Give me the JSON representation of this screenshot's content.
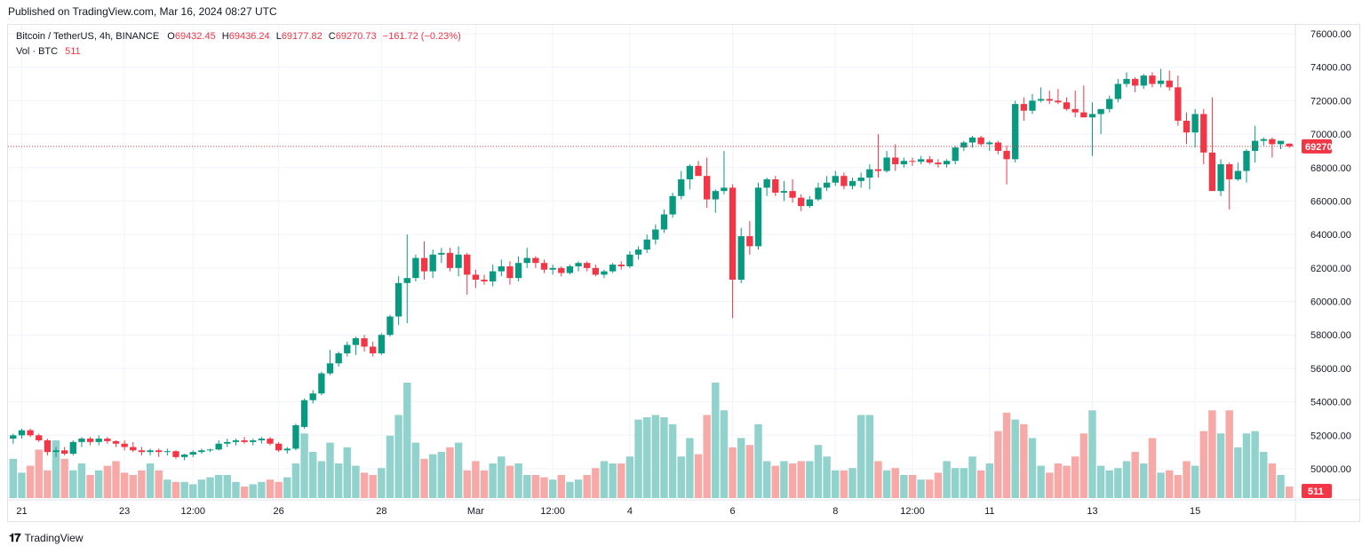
{
  "header": {
    "published": "Published on TradingView.com, Mar 16, 2024 08:27 UTC"
  },
  "legend": {
    "symbol": "Bitcoin / TetherUS, 4h, BINANCE",
    "o_label": "O",
    "o": "69432.45",
    "h_label": "H",
    "h": "69436.24",
    "l_label": "L",
    "l": "69177.82",
    "c_label": "C",
    "c": "69270.73",
    "change": "−161.72 (−0.23%)",
    "vol_label": "Vol · BTC",
    "vol": "511"
  },
  "footer": {
    "brand": "TradingView"
  },
  "colors": {
    "up": "#089981",
    "down": "#f23645",
    "vol_up": "#92d2cc",
    "vol_down": "#f7a9a7",
    "grid": "#f0f3fa"
  },
  "chart_data": {
    "type": "candlestick",
    "interval": "4h",
    "ylim": [
      48000,
      76000
    ],
    "y_ticks": [
      "76000.00",
      "74000.00",
      "72000.00",
      "70000.00",
      "68000.00",
      "66000.00",
      "64000.00",
      "62000.00",
      "60000.00",
      "58000.00",
      "56000.00",
      "54000.00",
      "52000.00",
      "50000.00"
    ],
    "x_ticks": [
      {
        "label": "21",
        "bar": 1
      },
      {
        "label": "23",
        "bar": 13
      },
      {
        "label": "12:00",
        "bar": 21
      },
      {
        "label": "26",
        "bar": 31
      },
      {
        "label": "28",
        "bar": 43
      },
      {
        "label": "Mar",
        "bar": 54
      },
      {
        "label": "12:00",
        "bar": 63
      },
      {
        "label": "4",
        "bar": 72
      },
      {
        "label": "6",
        "bar": 84
      },
      {
        "label": "8",
        "bar": 96
      },
      {
        "label": "12:00",
        "bar": 105
      },
      {
        "label": "11",
        "bar": 114
      },
      {
        "label": "13",
        "bar": 126
      },
      {
        "label": "15",
        "bar": 138
      }
    ],
    "last_price": "69270.73",
    "last_volume": "511",
    "ohlc": [
      [
        51800,
        52100,
        51500,
        52000
      ],
      [
        52000,
        52400,
        51800,
        52300
      ],
      [
        52300,
        52400,
        51900,
        52000
      ],
      [
        52000,
        52100,
        51600,
        51700
      ],
      [
        51700,
        51800,
        50800,
        51000
      ],
      [
        51000,
        51300,
        50700,
        51100
      ],
      [
        51100,
        51300,
        50800,
        50900
      ],
      [
        50900,
        51700,
        50800,
        51600
      ],
      [
        51600,
        51900,
        51300,
        51800
      ],
      [
        51800,
        51900,
        51400,
        51600
      ],
      [
        51600,
        52000,
        51400,
        51800
      ],
      [
        51800,
        51900,
        51500,
        51650
      ],
      [
        51650,
        51700,
        51300,
        51500
      ],
      [
        51500,
        51700,
        51100,
        51300
      ],
      [
        51300,
        51600,
        51000,
        51100
      ],
      [
        51100,
        51300,
        50800,
        51000
      ],
      [
        51000,
        51200,
        50800,
        51100
      ],
      [
        51100,
        51200,
        50700,
        51000
      ],
      [
        51000,
        51200,
        50800,
        51050
      ],
      [
        51050,
        51100,
        50600,
        50700
      ],
      [
        50700,
        50900,
        50500,
        50850
      ],
      [
        50850,
        51100,
        50700,
        51000
      ],
      [
        51000,
        51200,
        50900,
        51100
      ],
      [
        51100,
        51200,
        51000,
        51150
      ],
      [
        51150,
        51700,
        51100,
        51500
      ],
      [
        51500,
        51800,
        51300,
        51600
      ],
      [
        51600,
        51800,
        51400,
        51700
      ],
      [
        51700,
        51900,
        51500,
        51600
      ],
      [
        51600,
        51800,
        51400,
        51700
      ],
      [
        51700,
        51900,
        51500,
        51800
      ],
      [
        51800,
        51900,
        51400,
        51500
      ],
      [
        51500,
        51600,
        51000,
        51100
      ],
      [
        51100,
        51300,
        50900,
        51200
      ],
      [
        51200,
        52700,
        51100,
        52600
      ],
      [
        52500,
        54200,
        52400,
        54100
      ],
      [
        54100,
        54700,
        53900,
        54500
      ],
      [
        54500,
        55800,
        54400,
        55700
      ],
      [
        55700,
        57100,
        55600,
        56300
      ],
      [
        56300,
        57000,
        56100,
        56900
      ],
      [
        56900,
        57600,
        56700,
        57400
      ],
      [
        57400,
        57900,
        56800,
        57800
      ],
      [
        57800,
        58000,
        57000,
        57300
      ],
      [
        57300,
        57600,
        56700,
        56900
      ],
      [
        56900,
        58100,
        56800,
        58000
      ],
      [
        58000,
        59200,
        57900,
        59100
      ],
      [
        59100,
        61500,
        58600,
        61100
      ],
      [
        61100,
        64000,
        58700,
        61400
      ],
      [
        61400,
        62800,
        61200,
        62600
      ],
      [
        62600,
        63600,
        61300,
        61800
      ],
      [
        61800,
        63100,
        61400,
        62800
      ],
      [
        62800,
        63200,
        62300,
        62900
      ],
      [
        62900,
        63200,
        61800,
        62000
      ],
      [
        62000,
        63300,
        61500,
        62800
      ],
      [
        62800,
        62900,
        60400,
        61600
      ],
      [
        61600,
        61900,
        60800,
        61300
      ],
      [
        61300,
        61600,
        61000,
        61200
      ],
      [
        61200,
        62200,
        60900,
        61800
      ],
      [
        61800,
        62500,
        61500,
        62100
      ],
      [
        62100,
        62400,
        61000,
        61400
      ],
      [
        61400,
        62700,
        61200,
        62300
      ],
      [
        62300,
        63200,
        62000,
        62600
      ],
      [
        62600,
        62700,
        62000,
        62300
      ],
      [
        62300,
        62500,
        61700,
        61900
      ],
      [
        61900,
        62200,
        61600,
        62000
      ],
      [
        62000,
        62100,
        61500,
        61700
      ],
      [
        61700,
        62200,
        61600,
        62100
      ],
      [
        62100,
        62400,
        61800,
        62300
      ],
      [
        62300,
        62400,
        61800,
        62000
      ],
      [
        62000,
        62200,
        61500,
        61600
      ],
      [
        61600,
        61900,
        61400,
        61800
      ],
      [
        61800,
        62300,
        61700,
        62200
      ],
      [
        62200,
        62400,
        61900,
        62100
      ],
      [
        62100,
        63000,
        62000,
        62800
      ],
      [
        62800,
        63300,
        62500,
        63100
      ],
      [
        63100,
        64000,
        62900,
        63700
      ],
      [
        63700,
        64600,
        63400,
        64300
      ],
      [
        64300,
        65500,
        64100,
        65200
      ],
      [
        65200,
        66500,
        65000,
        66300
      ],
      [
        66300,
        67800,
        66100,
        67300
      ],
      [
        67300,
        68200,
        66700,
        68100
      ],
      [
        68100,
        68400,
        67700,
        67500
      ],
      [
        67500,
        68600,
        65600,
        66100
      ],
      [
        66100,
        66700,
        65300,
        66600
      ],
      [
        66600,
        69000,
        66400,
        66800
      ],
      [
        66800,
        67000,
        59000,
        61300
      ],
      [
        61300,
        64400,
        61100,
        63900
      ],
      [
        63900,
        64800,
        62800,
        63300
      ],
      [
        63300,
        67100,
        63100,
        66800
      ],
      [
        66800,
        67400,
        66300,
        67300
      ],
      [
        67300,
        67500,
        66300,
        66500
      ],
      [
        66500,
        67200,
        66000,
        66600
      ],
      [
        66600,
        67300,
        65900,
        66200
      ],
      [
        66200,
        66400,
        65400,
        65700
      ],
      [
        65700,
        66300,
        65600,
        66100
      ],
      [
        66100,
        67100,
        66000,
        66800
      ],
      [
        66800,
        67500,
        66600,
        67100
      ],
      [
        67100,
        67800,
        66900,
        67500
      ],
      [
        67500,
        67700,
        66700,
        66900
      ],
      [
        66900,
        67400,
        66700,
        67200
      ],
      [
        67200,
        67700,
        66800,
        67400
      ],
      [
        67400,
        68200,
        66700,
        67900
      ],
      [
        67900,
        70000,
        67400,
        67800
      ],
      [
        67800,
        69000,
        67700,
        68600
      ],
      [
        68600,
        69400,
        67800,
        68200
      ],
      [
        68200,
        68600,
        68000,
        68400
      ],
      [
        68400,
        68600,
        68100,
        68350
      ],
      [
        68350,
        68700,
        68200,
        68500
      ],
      [
        68500,
        68700,
        68200,
        68300
      ],
      [
        68300,
        68500,
        68000,
        68200
      ],
      [
        68200,
        68500,
        68000,
        68400
      ],
      [
        68400,
        69300,
        68200,
        69200
      ],
      [
        69200,
        69600,
        69000,
        69500
      ],
      [
        69500,
        69900,
        69200,
        69800
      ],
      [
        69800,
        69900,
        69300,
        69400
      ],
      [
        69400,
        69600,
        69000,
        69500
      ],
      [
        69500,
        69600,
        68800,
        69000
      ],
      [
        69000,
        69300,
        67000,
        68500
      ],
      [
        68500,
        72000,
        68300,
        71800
      ],
      [
        71800,
        72200,
        70800,
        71400
      ],
      [
        71400,
        72400,
        71200,
        72000
      ],
      [
        72000,
        72800,
        71900,
        72100
      ],
      [
        72100,
        72600,
        71800,
        72000
      ],
      [
        72000,
        72700,
        71800,
        71900
      ],
      [
        71900,
        72200,
        71400,
        71500
      ],
      [
        71500,
        72600,
        71000,
        71300
      ],
      [
        71300,
        72900,
        71200,
        71000
      ],
      [
        71000,
        71900,
        68700,
        71200
      ],
      [
        71200,
        71400,
        70000,
        71500
      ],
      [
        71500,
        72300,
        71300,
        72100
      ],
      [
        72100,
        73300,
        71900,
        73000
      ],
      [
        73000,
        73700,
        72800,
        73300
      ],
      [
        73300,
        73400,
        72500,
        72900
      ],
      [
        72900,
        73600,
        72700,
        73500
      ],
      [
        73500,
        73700,
        72800,
        73000
      ],
      [
        73000,
        73900,
        72800,
        73200
      ],
      [
        73200,
        73800,
        72600,
        72800
      ],
      [
        72800,
        73500,
        70500,
        70800
      ],
      [
        70800,
        71300,
        69400,
        70100
      ],
      [
        70100,
        71500,
        69200,
        71200
      ],
      [
        71200,
        71500,
        68200,
        68900
      ],
      [
        68900,
        72200,
        66700,
        66600
      ],
      [
        66600,
        68500,
        66300,
        68200
      ],
      [
        68200,
        68300,
        65500,
        67300
      ],
      [
        67300,
        68300,
        67200,
        67800
      ],
      [
        67800,
        69100,
        67100,
        69000
      ],
      [
        69000,
        70500,
        68300,
        69600
      ],
      [
        69600,
        69800,
        69300,
        69700
      ],
      [
        69700,
        69800,
        68600,
        69400
      ],
      [
        69400,
        69600,
        69100,
        69600
      ],
      [
        69432.45,
        69436.24,
        69177.82,
        69270.73
      ]
    ],
    "volume": [
      17,
      11,
      14,
      21,
      12,
      25,
      17,
      12,
      15,
      10,
      12,
      14,
      16,
      11,
      10,
      12,
      15,
      12,
      8,
      7,
      7,
      6,
      8,
      9,
      10,
      10,
      7,
      5,
      6,
      7,
      8,
      7,
      9,
      15,
      28,
      20,
      16,
      24,
      15,
      22,
      14,
      11,
      10,
      13,
      27,
      36,
      50,
      24,
      17,
      19,
      20,
      22,
      24,
      12,
      16,
      12,
      15,
      18,
      14,
      15,
      10,
      10,
      9,
      8,
      10,
      7,
      8,
      10,
      13,
      16,
      15,
      15,
      18,
      34,
      35,
      36,
      35,
      32,
      18,
      26,
      19,
      36,
      50,
      38,
      22,
      26,
      23,
      32,
      16,
      14,
      16,
      15,
      16,
      16,
      23,
      18,
      12,
      12,
      13,
      36,
      36,
      16,
      12,
      13,
      10,
      10,
      8,
      8,
      11,
      16,
      13,
      13,
      18,
      12,
      15,
      29,
      37,
      34,
      32,
      26,
      14,
      11,
      15,
      14,
      18,
      28,
      38,
      14,
      12,
      13,
      16,
      20,
      15,
      26,
      11,
      12,
      10,
      16,
      14,
      29,
      38,
      28,
      38,
      22,
      28,
      29,
      20,
      15,
      10,
      5
    ]
  }
}
